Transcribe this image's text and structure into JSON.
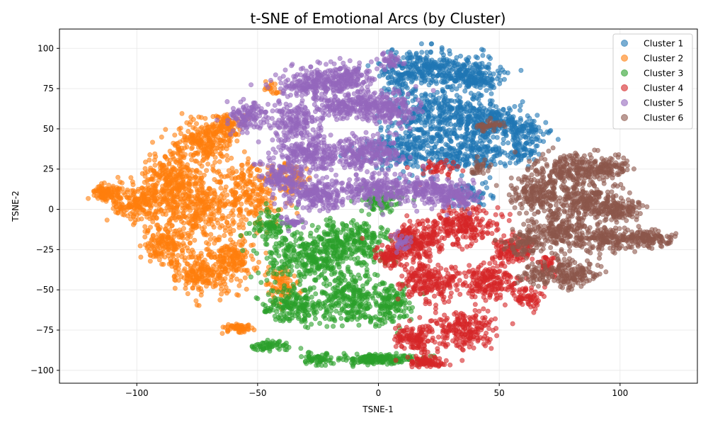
{
  "chart_data": {
    "type": "scatter",
    "title": "t-SNE of Emotional Arcs (by Cluster)",
    "xlabel": "TSNE-1",
    "ylabel": "TSNE-2",
    "xlim": [
      -132,
      132
    ],
    "ylim": [
      -108,
      112
    ],
    "xticks": [
      {
        "value": -100,
        "label": "−100"
      },
      {
        "value": -50,
        "label": "−50"
      },
      {
        "value": 0,
        "label": "0"
      },
      {
        "value": 50,
        "label": "50"
      },
      {
        "value": 100,
        "label": "100"
      }
    ],
    "yticks": [
      {
        "value": 100,
        "label": "100"
      },
      {
        "value": 75,
        "label": "75"
      },
      {
        "value": 50,
        "label": "50"
      },
      {
        "value": 25,
        "label": "25"
      },
      {
        "value": 0,
        "label": "0"
      },
      {
        "value": -25,
        "label": "−25"
      },
      {
        "value": -50,
        "label": "−50"
      },
      {
        "value": -75,
        "label": "−75"
      },
      {
        "value": -100,
        "label": "−100"
      }
    ],
    "grid": true,
    "legend_position": "top-right",
    "series": [
      {
        "name": "Cluster 1",
        "color": "#1f77b4",
        "blobs": [
          {
            "cx": 22,
            "cy": 88,
            "rx": 18,
            "ry": 10,
            "n": 300
          },
          {
            "cx": 40,
            "cy": 82,
            "rx": 10,
            "ry": 8,
            "n": 160
          },
          {
            "cx": 25,
            "cy": 60,
            "rx": 18,
            "ry": 14,
            "n": 300
          },
          {
            "cx": 45,
            "cy": 55,
            "rx": 12,
            "ry": 10,
            "n": 200
          },
          {
            "cx": 60,
            "cy": 50,
            "rx": 9,
            "ry": 8,
            "n": 110
          },
          {
            "cx": 15,
            "cy": 38,
            "rx": 17,
            "ry": 14,
            "n": 260
          },
          {
            "cx": 40,
            "cy": 35,
            "rx": 12,
            "ry": 10,
            "n": 180
          },
          {
            "cx": 60,
            "cy": 35,
            "rx": 6,
            "ry": 6,
            "n": 60
          },
          {
            "cx": 38,
            "cy": 10,
            "rx": 8,
            "ry": 8,
            "n": 60
          },
          {
            "cx": 8,
            "cy": 80,
            "rx": 6,
            "ry": 10,
            "n": 60
          }
        ]
      },
      {
        "name": "Cluster 2",
        "color": "#ff7f0e",
        "blobs": [
          {
            "cx": -113,
            "cy": 10,
            "rx": 6,
            "ry": 5,
            "n": 100
          },
          {
            "cx": -98,
            "cy": 5,
            "rx": 10,
            "ry": 12,
            "n": 220
          },
          {
            "cx": -85,
            "cy": 20,
            "rx": 10,
            "ry": 16,
            "n": 260
          },
          {
            "cx": -72,
            "cy": 42,
            "rx": 10,
            "ry": 12,
            "n": 220
          },
          {
            "cx": -63,
            "cy": 52,
            "rx": 6,
            "ry": 8,
            "n": 100
          },
          {
            "cx": -75,
            "cy": 0,
            "rx": 14,
            "ry": 18,
            "n": 320
          },
          {
            "cx": -88,
            "cy": -22,
            "rx": 8,
            "ry": 10,
            "n": 160
          },
          {
            "cx": -73,
            "cy": -40,
            "rx": 12,
            "ry": 12,
            "n": 220
          },
          {
            "cx": -60,
            "cy": -30,
            "rx": 8,
            "ry": 12,
            "n": 150
          },
          {
            "cx": -52,
            "cy": 10,
            "rx": 12,
            "ry": 18,
            "n": 240
          },
          {
            "cx": -58,
            "cy": -74,
            "rx": 6,
            "ry": 3,
            "n": 60
          },
          {
            "cx": -40,
            "cy": -45,
            "rx": 6,
            "ry": 12,
            "n": 80
          },
          {
            "cx": -45,
            "cy": 75,
            "rx": 3,
            "ry": 3,
            "n": 20
          },
          {
            "cx": -35,
            "cy": 20,
            "rx": 6,
            "ry": 8,
            "n": 60
          }
        ]
      },
      {
        "name": "Cluster 3",
        "color": "#2ca02c",
        "blobs": [
          {
            "cx": -30,
            "cy": -30,
            "rx": 18,
            "ry": 15,
            "n": 320
          },
          {
            "cx": -35,
            "cy": -60,
            "rx": 12,
            "ry": 9,
            "n": 200
          },
          {
            "cx": -12,
            "cy": -55,
            "rx": 12,
            "ry": 15,
            "n": 250
          },
          {
            "cx": -10,
            "cy": -20,
            "rx": 14,
            "ry": 14,
            "n": 260
          },
          {
            "cx": 5,
            "cy": -60,
            "rx": 8,
            "ry": 12,
            "n": 140
          },
          {
            "cx": 0,
            "cy": -93,
            "rx": 14,
            "ry": 3,
            "n": 180
          },
          {
            "cx": -45,
            "cy": -85,
            "rx": 8,
            "ry": 3,
            "n": 60
          },
          {
            "cx": -25,
            "cy": -93,
            "rx": 7,
            "ry": 3,
            "n": 60
          },
          {
            "cx": -45,
            "cy": -10,
            "rx": 8,
            "ry": 8,
            "n": 80
          },
          {
            "cx": 0,
            "cy": 5,
            "rx": 8,
            "ry": 6,
            "n": 80
          }
        ]
      },
      {
        "name": "Cluster 4",
        "color": "#d62728",
        "blobs": [
          {
            "cx": 15,
            "cy": -20,
            "rx": 12,
            "ry": 10,
            "n": 240
          },
          {
            "cx": 35,
            "cy": -10,
            "rx": 12,
            "ry": 10,
            "n": 220
          },
          {
            "cx": 20,
            "cy": -45,
            "rx": 10,
            "ry": 10,
            "n": 200
          },
          {
            "cx": 35,
            "cy": -75,
            "rx": 12,
            "ry": 10,
            "n": 200
          },
          {
            "cx": 45,
            "cy": -45,
            "rx": 12,
            "ry": 10,
            "n": 200
          },
          {
            "cx": 15,
            "cy": -80,
            "rx": 8,
            "ry": 8,
            "n": 130
          },
          {
            "cx": 20,
            "cy": -95,
            "rx": 8,
            "ry": 3,
            "n": 80
          },
          {
            "cx": 55,
            "cy": -25,
            "rx": 8,
            "ry": 8,
            "n": 120
          },
          {
            "cx": 62,
            "cy": -55,
            "rx": 5,
            "ry": 6,
            "n": 60
          },
          {
            "cx": 70,
            "cy": -35,
            "rx": 4,
            "ry": 6,
            "n": 40
          },
          {
            "cx": 5,
            "cy": -30,
            "rx": 5,
            "ry": 5,
            "n": 60
          },
          {
            "cx": 25,
            "cy": 25,
            "rx": 8,
            "ry": 5,
            "n": 40
          }
        ]
      },
      {
        "name": "Cluster 5",
        "color": "#9467bd",
        "blobs": [
          {
            "cx": -28,
            "cy": 78,
            "rx": 12,
            "ry": 8,
            "n": 220
          },
          {
            "cx": -12,
            "cy": 82,
            "rx": 8,
            "ry": 7,
            "n": 140
          },
          {
            "cx": -55,
            "cy": 58,
            "rx": 7,
            "ry": 7,
            "n": 120
          },
          {
            "cx": -35,
            "cy": 55,
            "rx": 10,
            "ry": 9,
            "n": 160
          },
          {
            "cx": -10,
            "cy": 65,
            "rx": 14,
            "ry": 8,
            "n": 240
          },
          {
            "cx": 5,
            "cy": 62,
            "rx": 10,
            "ry": 10,
            "n": 160
          },
          {
            "cx": -28,
            "cy": 35,
            "rx": 14,
            "ry": 10,
            "n": 240
          },
          {
            "cx": -5,
            "cy": 35,
            "rx": 14,
            "ry": 10,
            "n": 240
          },
          {
            "cx": -40,
            "cy": 20,
            "rx": 8,
            "ry": 8,
            "n": 120
          },
          {
            "cx": -25,
            "cy": 10,
            "rx": 14,
            "ry": 8,
            "n": 240
          },
          {
            "cx": 0,
            "cy": 12,
            "rx": 12,
            "ry": 8,
            "n": 200
          },
          {
            "cx": 20,
            "cy": 12,
            "rx": 10,
            "ry": 7,
            "n": 160
          },
          {
            "cx": 32,
            "cy": 8,
            "rx": 8,
            "ry": 7,
            "n": 130
          },
          {
            "cx": 5,
            "cy": 92,
            "rx": 5,
            "ry": 5,
            "n": 40
          },
          {
            "cx": -35,
            "cy": -8,
            "rx": 4,
            "ry": 4,
            "n": 30
          },
          {
            "cx": 10,
            "cy": -20,
            "rx": 4,
            "ry": 6,
            "n": 30
          }
        ]
      },
      {
        "name": "Cluster 6",
        "color": "#8c564b",
        "blobs": [
          {
            "cx": 80,
            "cy": 25,
            "rx": 14,
            "ry": 10,
            "n": 220
          },
          {
            "cx": 95,
            "cy": 25,
            "rx": 8,
            "ry": 6,
            "n": 100
          },
          {
            "cx": 65,
            "cy": 10,
            "rx": 10,
            "ry": 10,
            "n": 180
          },
          {
            "cx": 85,
            "cy": 5,
            "rx": 14,
            "ry": 10,
            "n": 240
          },
          {
            "cx": 100,
            "cy": 0,
            "rx": 8,
            "ry": 6,
            "n": 120
          },
          {
            "cx": 112,
            "cy": -18,
            "rx": 8,
            "ry": 5,
            "n": 120
          },
          {
            "cx": 95,
            "cy": -18,
            "rx": 10,
            "ry": 7,
            "n": 160
          },
          {
            "cx": 75,
            "cy": -15,
            "rx": 12,
            "ry": 10,
            "n": 220
          },
          {
            "cx": 60,
            "cy": -20,
            "rx": 6,
            "ry": 8,
            "n": 80
          },
          {
            "cx": 80,
            "cy": -40,
            "rx": 10,
            "ry": 8,
            "n": 150
          },
          {
            "cx": 65,
            "cy": -40,
            "rx": 6,
            "ry": 6,
            "n": 60
          },
          {
            "cx": 45,
            "cy": 52,
            "rx": 5,
            "ry": 3,
            "n": 40
          },
          {
            "cx": 42,
            "cy": 25,
            "rx": 4,
            "ry": 4,
            "n": 30
          }
        ]
      }
    ]
  }
}
